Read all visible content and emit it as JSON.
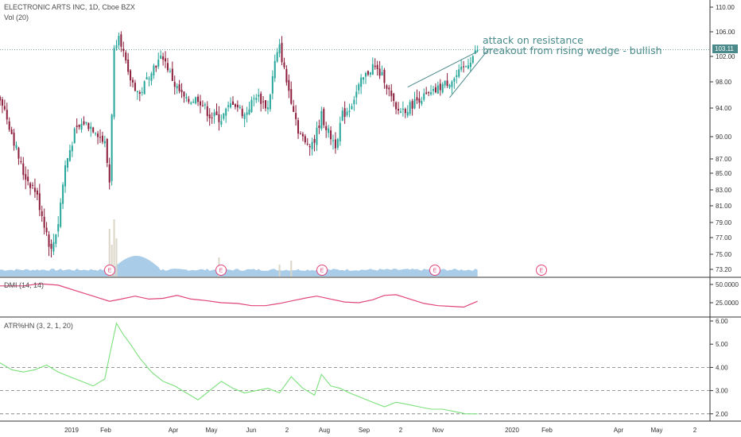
{
  "chart_data": [
    {
      "type": "candlestick",
      "title": "ELECTRONIC ARTS INC, 1D, Cboe BZX",
      "volume_label": "Vol (20)",
      "price_scale": [
        "110.00",
        "106.00",
        "102.00",
        "98.00",
        "94.00",
        "90.00",
        "87.00",
        "85.00",
        "83.00",
        "81.00",
        "79.00",
        "77.00",
        "75.00",
        "73.20"
      ],
      "price_ticks": [
        110,
        106,
        102,
        98,
        94,
        90,
        87,
        85,
        83,
        81,
        79,
        77,
        75,
        73.2
      ],
      "last_price": "103.11",
      "last_value": 103.11,
      "resistance": 103.11,
      "x_labels": [
        "2019",
        "Feb",
        "Apr",
        "May",
        "Jun",
        "2",
        "Aug",
        "Sep",
        "2",
        "Nov",
        "2020",
        "Feb",
        "Apr",
        "May",
        "2"
      ],
      "annotations": [
        "attack on resistance",
        "breakout from rising wedge - bullish"
      ],
      "event_marker": "E",
      "wedge": {
        "upper": [
          [
            175,
            97.2
          ],
          [
            205,
            102.8
          ]
        ],
        "lower": [
          [
            193,
            95.6
          ],
          [
            210,
            103.3
          ]
        ]
      },
      "approx_close_path": [
        [
          0,
          95.8
        ],
        [
          5,
          90.5
        ],
        [
          10,
          85.0
        ],
        [
          15,
          83.0
        ],
        [
          18,
          80.0
        ],
        [
          22,
          75.3
        ],
        [
          25,
          79.0
        ],
        [
          28,
          86.0
        ],
        [
          32,
          90.5
        ],
        [
          36,
          92.0
        ],
        [
          41,
          91.0
        ],
        [
          45,
          89.0
        ],
        [
          47,
          84.0
        ],
        [
          49,
          103.0
        ],
        [
          51,
          106.0
        ],
        [
          55,
          99.0
        ],
        [
          60,
          96.0
        ],
        [
          65,
          100.0
        ],
        [
          70,
          102.0
        ],
        [
          75,
          97.5
        ],
        [
          80,
          95.0
        ],
        [
          85,
          95.5
        ],
        [
          90,
          93.0
        ],
        [
          95,
          92.5
        ],
        [
          100,
          95.0
        ],
        [
          105,
          93.0
        ],
        [
          110,
          96.0
        ],
        [
          115,
          94.0
        ],
        [
          118,
          101.0
        ],
        [
          120,
          103.5
        ],
        [
          123,
          98.0
        ],
        [
          126,
          94.0
        ],
        [
          128,
          91.0
        ],
        [
          131,
          89.0
        ],
        [
          135,
          89.5
        ],
        [
          138,
          93.0
        ],
        [
          141,
          90.5
        ],
        [
          144,
          89.0
        ],
        [
          147,
          93.0
        ],
        [
          150,
          94.0
        ],
        [
          155,
          98.0
        ],
        [
          160,
          100.5
        ],
        [
          165,
          98.5
        ],
        [
          170,
          93.5
        ],
        [
          175,
          94.0
        ],
        [
          180,
          95.5
        ],
        [
          185,
          96.0
        ],
        [
          190,
          97.5
        ],
        [
          195,
          98.5
        ],
        [
          200,
          100.5
        ],
        [
          205,
          103.1
        ]
      ]
    },
    {
      "type": "line",
      "title": "DMI (14, 14)",
      "scale": [
        "50.0000",
        "25.0000"
      ],
      "ticks": [
        50,
        25
      ],
      "color": "#e0457b",
      "points": [
        [
          0,
          48
        ],
        [
          10,
          48
        ],
        [
          17,
          51
        ],
        [
          25,
          49
        ],
        [
          33,
          41
        ],
        [
          40,
          34
        ],
        [
          47,
          27
        ],
        [
          52,
          30
        ],
        [
          58,
          34
        ],
        [
          64,
          30
        ],
        [
          70,
          31
        ],
        [
          76,
          35
        ],
        [
          82,
          30
        ],
        [
          88,
          28
        ],
        [
          95,
          25
        ],
        [
          102,
          24
        ],
        [
          108,
          21
        ],
        [
          114,
          21
        ],
        [
          120,
          24
        ],
        [
          126,
          28
        ],
        [
          132,
          32
        ],
        [
          136,
          34
        ],
        [
          142,
          30
        ],
        [
          148,
          26
        ],
        [
          154,
          25
        ],
        [
          160,
          29
        ],
        [
          165,
          35
        ],
        [
          170,
          36
        ],
        [
          176,
          30
        ],
        [
          182,
          24
        ],
        [
          188,
          21
        ],
        [
          194,
          20
        ],
        [
          199,
          19
        ],
        [
          205,
          27
        ]
      ]
    },
    {
      "type": "line",
      "title": "ATR%HN (3, 2, 1, 20)",
      "scale": [
        "6.00",
        "5.00",
        "4.00",
        "3.00",
        "2.00"
      ],
      "ticks": [
        6,
        5,
        4,
        3,
        2
      ],
      "reference_lines": [
        4,
        3,
        2
      ],
      "color": "#7be07b",
      "points": [
        [
          0,
          4.2
        ],
        [
          5,
          3.9
        ],
        [
          10,
          3.8
        ],
        [
          15,
          3.9
        ],
        [
          20,
          4.1
        ],
        [
          25,
          3.8
        ],
        [
          30,
          3.6
        ],
        [
          35,
          3.4
        ],
        [
          40,
          3.2
        ],
        [
          45,
          3.5
        ],
        [
          47,
          4.5
        ],
        [
          50,
          5.9
        ],
        [
          53,
          5.4
        ],
        [
          56,
          5.0
        ],
        [
          60,
          4.4
        ],
        [
          65,
          3.8
        ],
        [
          70,
          3.4
        ],
        [
          75,
          3.2
        ],
        [
          80,
          2.9
        ],
        [
          85,
          2.6
        ],
        [
          90,
          3.0
        ],
        [
          95,
          3.4
        ],
        [
          100,
          3.1
        ],
        [
          105,
          2.9
        ],
        [
          110,
          3.0
        ],
        [
          115,
          3.1
        ],
        [
          120,
          2.9
        ],
        [
          125,
          3.6
        ],
        [
          130,
          3.1
        ],
        [
          135,
          2.8
        ],
        [
          138,
          3.7
        ],
        [
          142,
          3.2
        ],
        [
          146,
          3.1
        ],
        [
          150,
          2.9
        ],
        [
          155,
          2.7
        ],
        [
          160,
          2.5
        ],
        [
          165,
          2.3
        ],
        [
          170,
          2.5
        ],
        [
          175,
          2.4
        ],
        [
          180,
          2.3
        ],
        [
          185,
          2.2
        ],
        [
          190,
          2.2
        ],
        [
          195,
          2.1
        ],
        [
          200,
          2.0
        ],
        [
          205,
          2.0
        ]
      ]
    }
  ]
}
